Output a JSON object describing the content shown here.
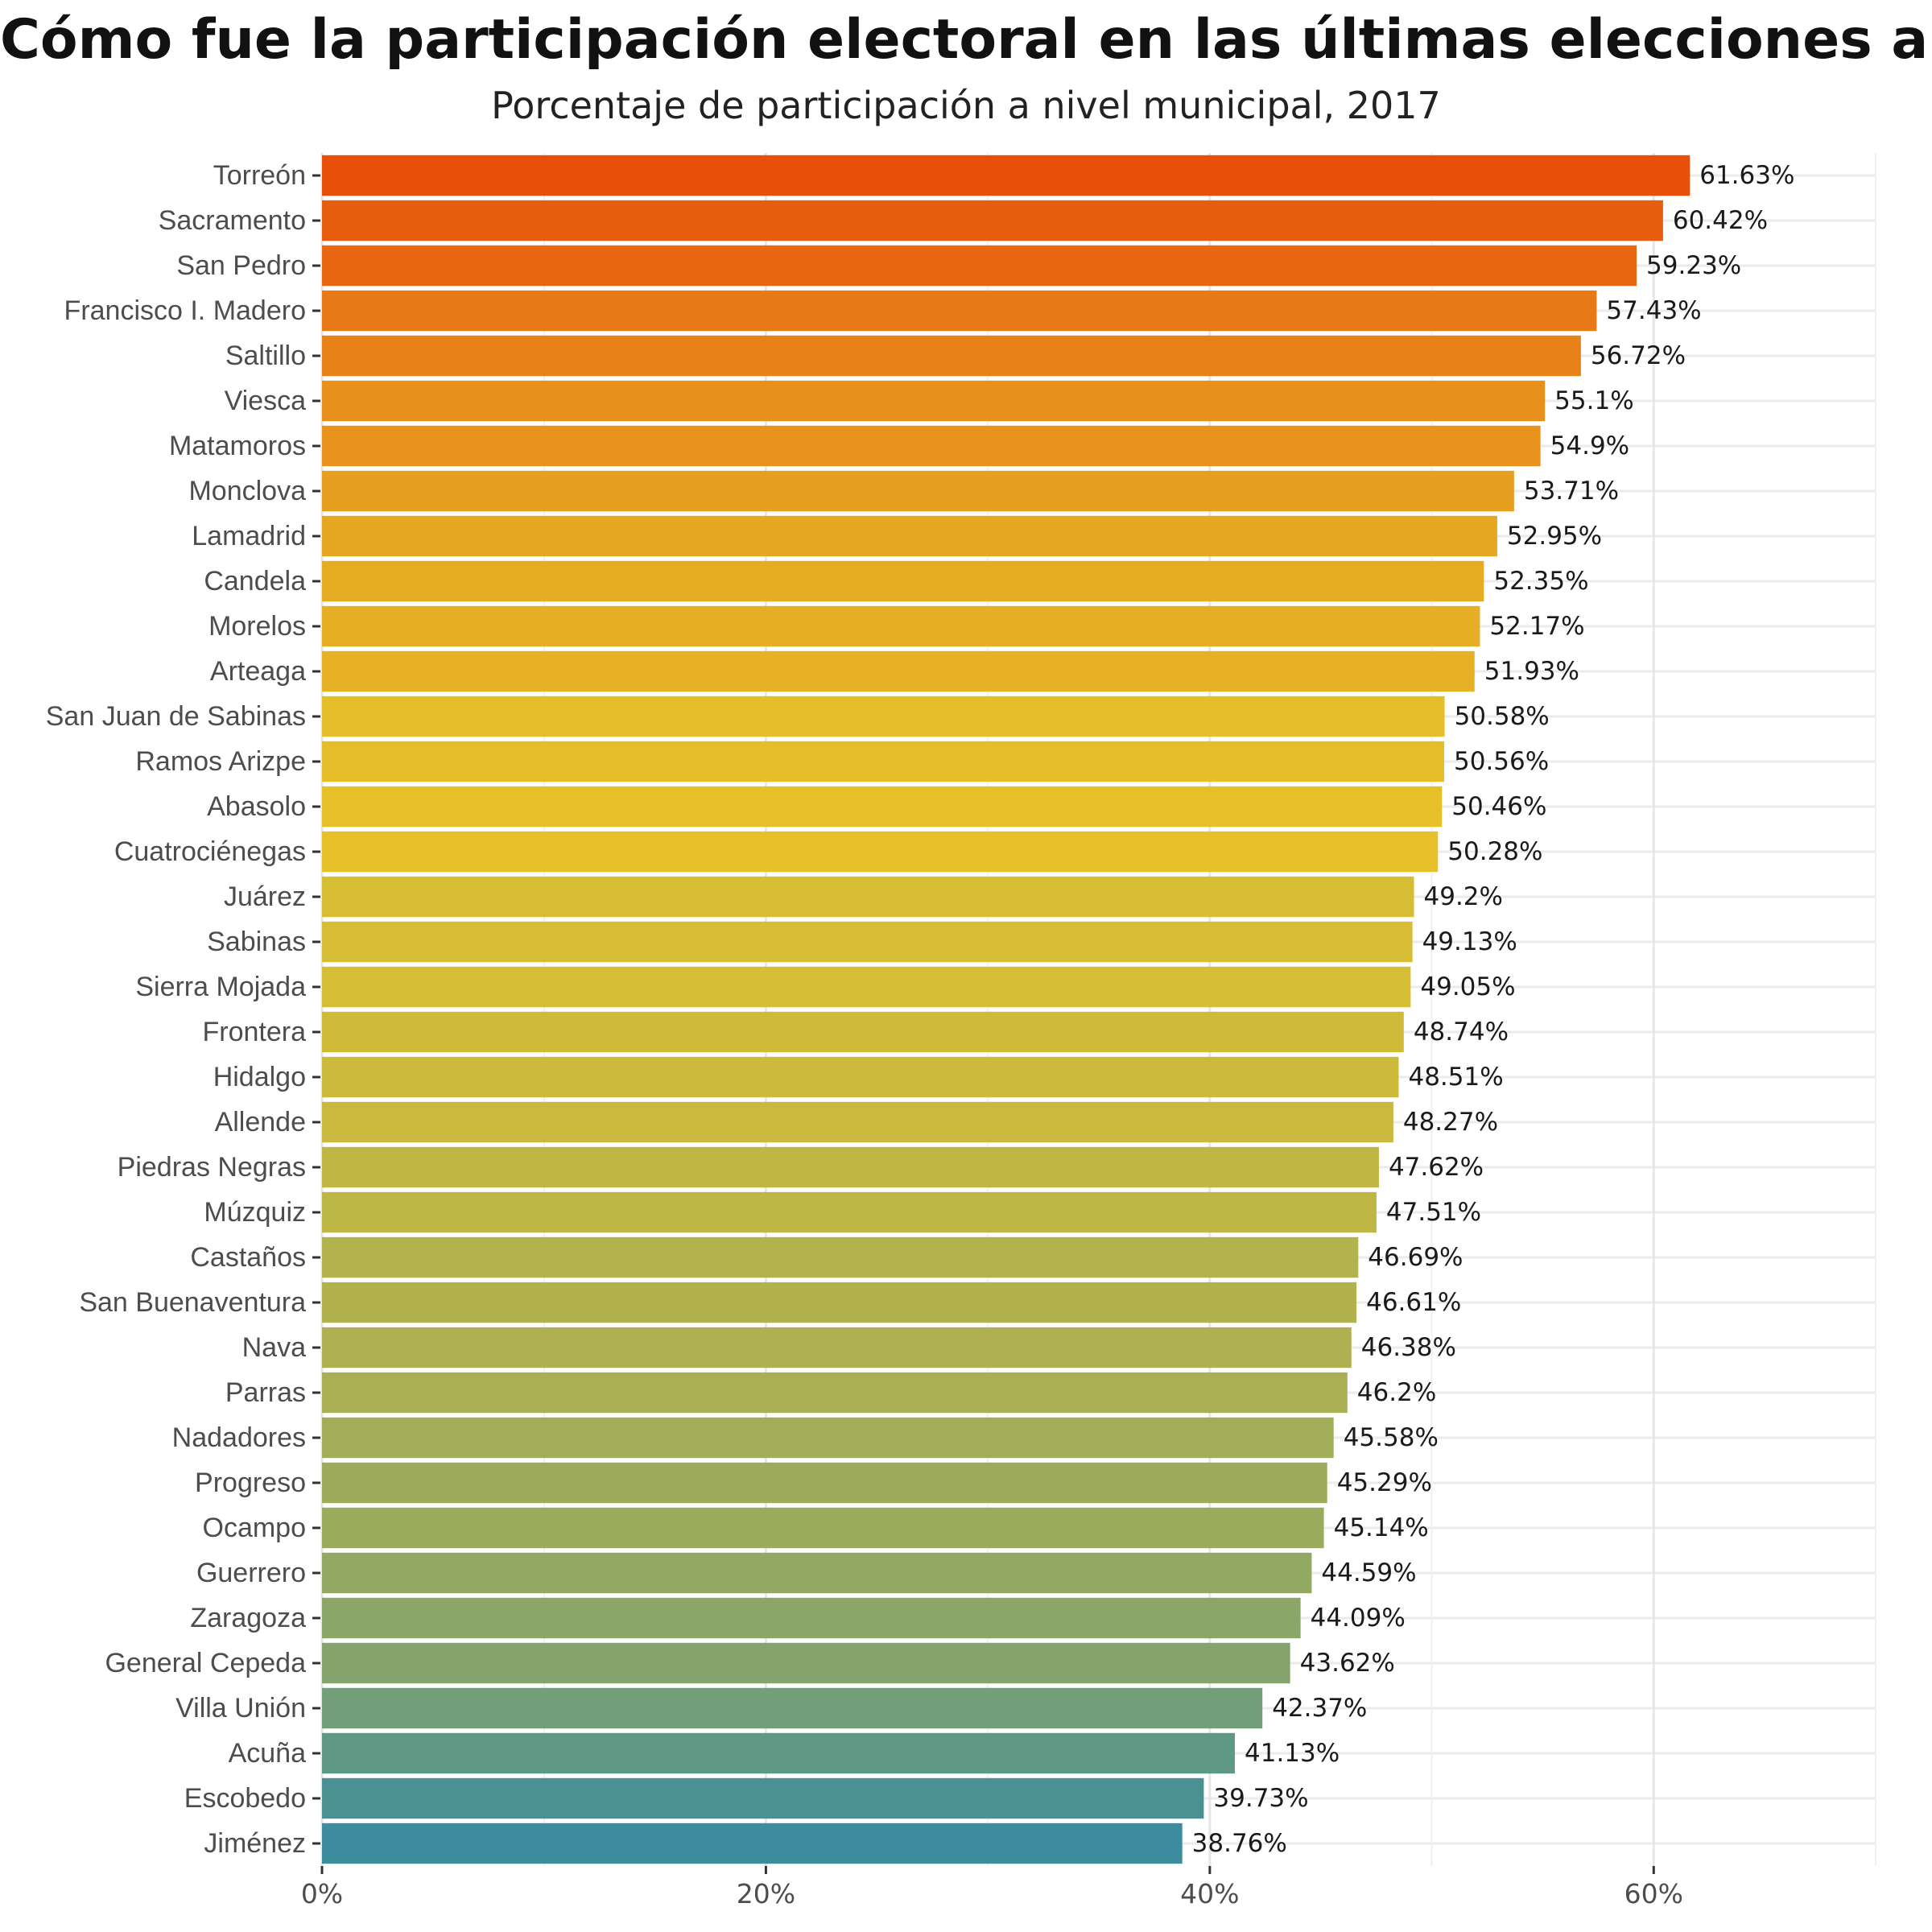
{
  "chart_data": {
    "type": "bar",
    "orientation": "horizontal",
    "title": "Cómo fue la participación electoral en las últimas elecciones a gobernador",
    "subtitle": "Porcentaje de participación a nivel municipal, 2017",
    "xlabel": "",
    "ylabel": "",
    "xlim": [
      0,
      70
    ],
    "x_ticks": [
      {
        "value": 0,
        "label": "0%"
      },
      {
        "value": 20,
        "label": "20%"
      },
      {
        "value": 40,
        "label": "40%"
      },
      {
        "value": 60,
        "label": "60%"
      }
    ],
    "grid": true,
    "legend": "none",
    "color_scale": {
      "low": "#3d8d9e",
      "mid": "#e6c22a",
      "high": "#e8500a"
    },
    "categories": [
      "Torreón",
      "Sacramento",
      "San Pedro",
      "Francisco I. Madero",
      "Saltillo",
      "Viesca",
      "Matamoros",
      "Monclova",
      "Lamadrid",
      "Candela",
      "Morelos",
      "Arteaga",
      "San Juan de Sabinas",
      "Ramos Arizpe",
      "Abasolo",
      "Cuatrociénegas",
      "Juárez",
      "Sabinas",
      "Sierra Mojada",
      "Frontera",
      "Hidalgo",
      "Allende",
      "Piedras Negras",
      "Múzquiz",
      "Castaños",
      "San Buenaventura",
      "Nava",
      "Parras",
      "Nadadores",
      "Progreso",
      "Ocampo",
      "Guerrero",
      "Zaragoza",
      "General Cepeda",
      "Villa Unión",
      "Acuña",
      "Escobedo",
      "Jiménez"
    ],
    "values": [
      61.63,
      60.42,
      59.23,
      57.43,
      56.72,
      55.1,
      54.9,
      53.71,
      52.95,
      52.35,
      52.17,
      51.93,
      50.58,
      50.56,
      50.46,
      50.28,
      49.2,
      49.13,
      49.05,
      48.74,
      48.51,
      48.27,
      47.62,
      47.51,
      46.69,
      46.61,
      46.38,
      46.2,
      45.58,
      45.29,
      45.14,
      44.59,
      44.09,
      43.62,
      42.37,
      41.13,
      39.73,
      38.76
    ],
    "value_labels": [
      "61.63%",
      "60.42%",
      "59.23%",
      "57.43%",
      "56.72%",
      "55.1%",
      "54.9%",
      "53.71%",
      "52.95%",
      "52.35%",
      "52.17%",
      "51.93%",
      "50.58%",
      "50.56%",
      "50.46%",
      "50.28%",
      "49.2%",
      "49.13%",
      "49.05%",
      "48.74%",
      "48.51%",
      "48.27%",
      "47.62%",
      "47.51%",
      "46.69%",
      "46.61%",
      "46.38%",
      "46.2%",
      "45.58%",
      "45.29%",
      "45.14%",
      "44.59%",
      "44.09%",
      "43.62%",
      "42.37%",
      "41.13%",
      "39.73%",
      "38.76%"
    ]
  }
}
